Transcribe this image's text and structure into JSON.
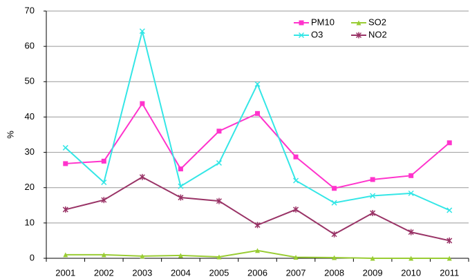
{
  "chart_data": {
    "type": "line",
    "y_label": "%",
    "categories": [
      "2001",
      "2002",
      "2003",
      "2004",
      "2005",
      "2006",
      "2007",
      "2008",
      "2009",
      "2010",
      "2011"
    ],
    "series": [
      {
        "name": "PM10",
        "color": "#ff33cc",
        "marker": "square",
        "values": [
          26.8,
          27.5,
          43.8,
          25.3,
          36,
          41,
          28.7,
          19.8,
          22.3,
          23.4,
          32.7
        ]
      },
      {
        "name": "SO2",
        "color": "#99cc33",
        "marker": "triangle",
        "values": [
          1,
          1,
          0.6,
          0.8,
          0.4,
          2.2,
          0.3,
          0.2,
          0,
          0,
          0
        ]
      },
      {
        "name": "O3",
        "color": "#33e6e6",
        "marker": "x",
        "values": [
          31.3,
          21.5,
          64.3,
          20.4,
          27,
          49.3,
          22,
          15.7,
          17.7,
          18.4,
          13.6
        ]
      },
      {
        "name": "NO2",
        "color": "#993366",
        "marker": "star",
        "values": [
          13.8,
          16.5,
          23,
          17.2,
          16.2,
          9.4,
          13.8,
          6.8,
          12.8,
          7.4,
          5
        ]
      }
    ],
    "ylim": [
      0,
      70
    ],
    "yticks": [
      0,
      10,
      20,
      30,
      40,
      50,
      60,
      70
    ],
    "grid": true,
    "legend": "top-right"
  }
}
